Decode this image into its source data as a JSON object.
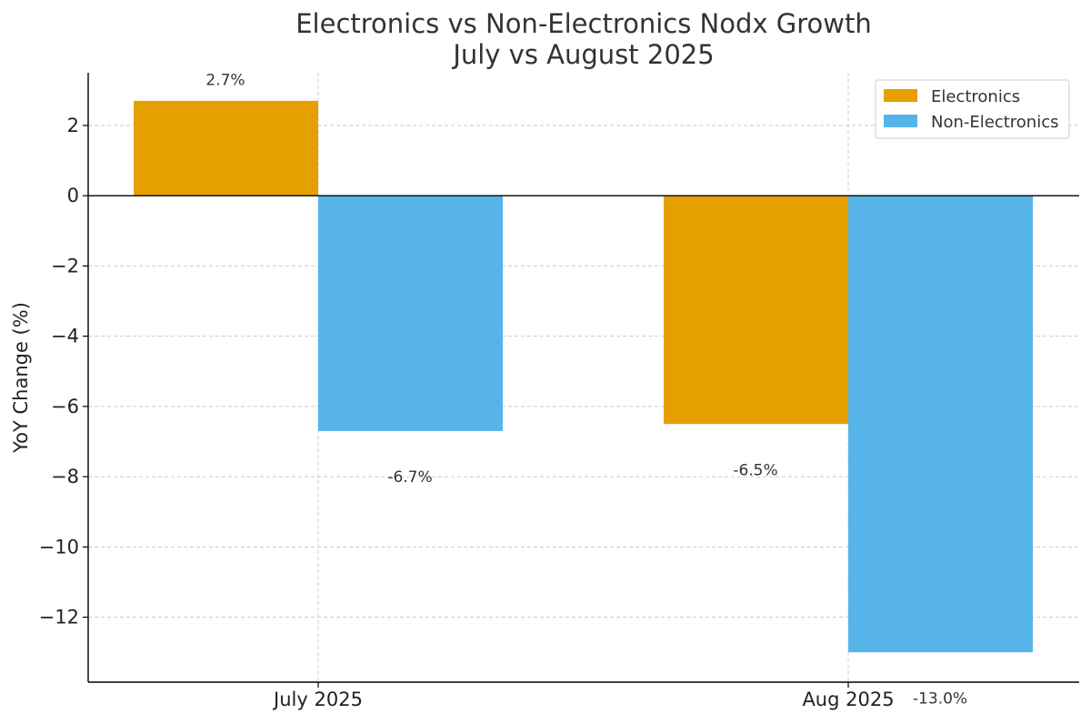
{
  "chart_data": {
    "type": "bar",
    "title_line1": "Electronics vs Non-Electronics Nodx Growth",
    "title_line2": "July vs August 2025",
    "xlabel": "",
    "ylabel": "YoY Change (%)",
    "categories": [
      "July 2025",
      "Aug 2025"
    ],
    "series": [
      {
        "name": "Electronics",
        "color": "#E69F00",
        "values": [
          2.7,
          -6.5
        ],
        "labels": [
          "2.7%",
          "-6.5%"
        ]
      },
      {
        "name": "Non-Electronics",
        "color": "#56B4E9",
        "values": [
          -6.7,
          -13.0
        ],
        "labels": [
          "-6.7%",
          "-13.0%"
        ]
      }
    ],
    "ylim": [
      -13.85,
      3.5
    ],
    "yticks": [
      2,
      0,
      -2,
      -4,
      -6,
      -8,
      -10,
      -12
    ],
    "ytick_labels": [
      "2",
      "0",
      "−2",
      "−4",
      "−6",
      "−8",
      "−10",
      "−12"
    ],
    "grid": true,
    "legend_position": "top-right"
  }
}
